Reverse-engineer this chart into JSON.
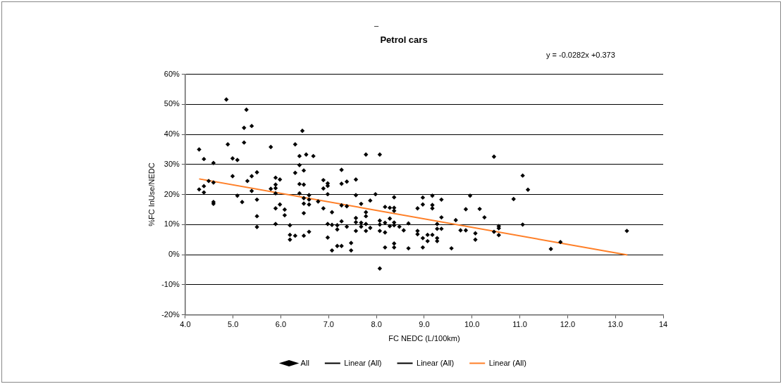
{
  "chart_data": {
    "type": "scatter",
    "title": "Petrol cars",
    "xlabel": "FC NEDC (L/100km)",
    "ylabel": "%FC InUse/NEDC",
    "annotations": [
      "–",
      "y = -0.0282x  +0.373"
    ],
    "xlim": [
      4,
      14
    ],
    "xticks": [
      {
        "value": 4,
        "label": "4.0"
      },
      {
        "value": 5,
        "label": "5.0"
      },
      {
        "value": 6,
        "label": "6.0"
      },
      {
        "value": 7,
        "label": "7.0"
      },
      {
        "value": 8,
        "label": "8.0"
      },
      {
        "value": 9,
        "label": "9.0"
      },
      {
        "value": 10,
        "label": "10.0"
      },
      {
        "value": 11,
        "label": "11.0"
      },
      {
        "value": 12,
        "label": "12.0"
      },
      {
        "value": 13,
        "label": "13.0"
      },
      14
    ],
    "ylim": [
      -20,
      60
    ],
    "yticks": [
      {
        "value": -20,
        "label": "-20%"
      },
      {
        "value": -10,
        "label": "-10%"
      },
      {
        "value": 0,
        "label": "0%"
      },
      {
        "value": 10,
        "label": "10%"
      },
      {
        "value": 20,
        "label": "20%"
      },
      {
        "value": 30,
        "label": "30%"
      },
      {
        "value": 40,
        "label": "40%"
      },
      {
        "value": 50,
        "label": "50%"
      },
      {
        "value": 60,
        "label": "60%"
      }
    ],
    "grid": "y",
    "legend": "bottom",
    "series": [
      {
        "name": "All",
        "type": "scatter",
        "color": "#000000",
        "marker": "diamond",
        "x": [
          4.29,
          4.39,
          4.29,
          4.39,
          4.39,
          4.49,
          4.59,
          4.59,
          4.59,
          4.59,
          4.86,
          4.89,
          4.99,
          5.09,
          4.99,
          5.09,
          5.19,
          5.23,
          5.23,
          5.28,
          5.3,
          5.39,
          5.39,
          5.39,
          5.5,
          5.5,
          5.5,
          5.5,
          5.79,
          5.79,
          5.89,
          5.89,
          5.89,
          5.89,
          5.89,
          5.89,
          5.98,
          5.98,
          6.08,
          6.08,
          6.19,
          6.19,
          6.19,
          6.3,
          6.3,
          6.3,
          6.39,
          6.39,
          6.39,
          6.39,
          6.45,
          6.48,
          6.48,
          6.48,
          6.48,
          6.48,
          6.48,
          6.53,
          6.59,
          6.59,
          6.59,
          6.59,
          6.68,
          6.78,
          6.89,
          6.89,
          6.89,
          6.98,
          6.98,
          6.98,
          6.98,
          6.98,
          7.07,
          7.07,
          7.07,
          7.18,
          7.18,
          7.18,
          7.27,
          7.27,
          7.27,
          7.27,
          7.27,
          7.38,
          7.38,
          7.38,
          7.47,
          7.47,
          7.57,
          7.57,
          7.57,
          7.57,
          7.57,
          7.68,
          7.68,
          7.68,
          7.78,
          7.78,
          7.78,
          7.78,
          7.78,
          7.87,
          7.87,
          7.98,
          8.07,
          8.07,
          8.07,
          8.07,
          8.07,
          8.18,
          8.18,
          8.18,
          8.18,
          8.28,
          8.28,
          8.28,
          8.37,
          8.37,
          8.37,
          8.37,
          8.37,
          8.37,
          8.37,
          8.48,
          8.57,
          8.67,
          8.67,
          8.86,
          8.86,
          8.86,
          8.97,
          8.97,
          8.97,
          8.97,
          9.07,
          9.07,
          9.17,
          9.17,
          9.17,
          9.17,
          9.27,
          9.27,
          9.27,
          9.27,
          9.36,
          9.36,
          9.36,
          9.57,
          9.66,
          9.76,
          9.87,
          9.87,
          9.96,
          10.07,
          10.07,
          10.16,
          10.26,
          10.46,
          10.46,
          10.56,
          10.56,
          10.56,
          10.87,
          11.06,
          11.17,
          11.06,
          11.65,
          11.85,
          13.24
        ],
        "values": [
          35,
          31.8,
          21.7,
          22.8,
          20.7,
          24.5,
          30.5,
          24,
          17.5,
          16.9,
          51.6,
          36.7,
          32,
          31.5,
          26.1,
          19.6,
          17.5,
          42.2,
          37.3,
          48.2,
          24.5,
          42.8,
          26.1,
          21.2,
          27.4,
          18.3,
          12.8,
          9.2,
          35.8,
          21.9,
          25.6,
          23.3,
          22.1,
          20.4,
          15.4,
          10.2,
          25,
          16.7,
          15,
          13.1,
          9.8,
          6.6,
          5,
          36.7,
          27.2,
          6.3,
          32.8,
          29.8,
          23.5,
          20.4,
          41.2,
          28,
          23.3,
          18.8,
          17,
          13.8,
          6.3,
          33.3,
          19.8,
          18.3,
          16.7,
          7.6,
          32.8,
          17.7,
          24.8,
          22,
          15.4,
          23.7,
          22.9,
          20.1,
          10.2,
          5.7,
          14.1,
          9.9,
          1.4,
          9.8,
          8.4,
          2.9,
          28.2,
          23.6,
          16.4,
          11.1,
          2.9,
          24.3,
          16.1,
          9.3,
          3.9,
          1.4,
          25,
          19.8,
          12.2,
          10.8,
          7.9,
          16.9,
          10.6,
          9.3,
          33.3,
          14.1,
          12.8,
          10.2,
          7.9,
          18,
          8.9,
          20.1,
          33.3,
          11.3,
          10,
          7.9,
          -4.6,
          15.9,
          10.6,
          7.4,
          2.4,
          15.6,
          12,
          9.5,
          19.1,
          15.6,
          14.6,
          10.7,
          9.8,
          3.7,
          2.4,
          9.3,
          8.1,
          10.4,
          2.1,
          15.4,
          7.9,
          6.8,
          19,
          16.7,
          5.5,
          2.4,
          6.6,
          4.5,
          19.6,
          16.5,
          15.4,
          6.6,
          10.2,
          8.6,
          5.5,
          4.5,
          18.3,
          12.4,
          8.6,
          2.1,
          11.5,
          8.1,
          15.1,
          8.1,
          19.6,
          7.1,
          5,
          15.2,
          12.4,
          32.6,
          7.6,
          9.5,
          8.8,
          6.5,
          18.5,
          26.3,
          21.6,
          10,
          1.9,
          4.2,
          7.9
        ]
      },
      {
        "name": "Linear (All)",
        "type": "line",
        "color": "#000000",
        "marker": "none"
      },
      {
        "name": "Linear (All)",
        "type": "line",
        "color": "#000000",
        "marker": "none"
      },
      {
        "name": "Linear (All)",
        "type": "line",
        "color": "#ff7f27",
        "marker": "none",
        "x": [
          4.29,
          13.25
        ],
        "values": [
          25.2,
          -0.1
        ]
      }
    ]
  }
}
